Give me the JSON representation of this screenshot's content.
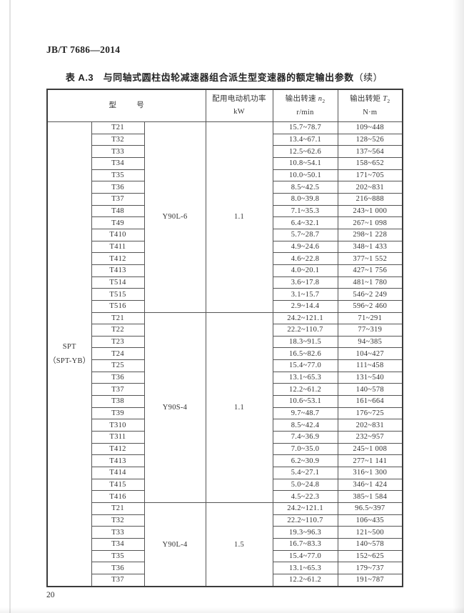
{
  "page": {
    "doc_number": "JB/T 7686—2014",
    "page_number": "20",
    "table_title": "表 A.3　与同轴式圆柱齿轮减速器组合派生型变速器的额定输出参数",
    "table_title_suffix": "（续）"
  },
  "table": {
    "header": {
      "model_left": "型",
      "model_right": "号",
      "power_line1": "配用电动机功率",
      "power_line2": "kW",
      "speed_prefix": "输出转速 ",
      "speed_var": "n",
      "speed_sub": "2",
      "speed_unit": "r/min",
      "torque_prefix": "输出转矩 ",
      "torque_var": "T",
      "torque_sub": "2",
      "torque_unit": "N·m"
    },
    "group": {
      "line1": "SPT",
      "line2": "（SPT-YB）"
    },
    "sections": [
      {
        "motor": "Y90L-6",
        "power": "1.1",
        "rows": [
          [
            "T21",
            "15.7~78.7",
            "109~448"
          ],
          [
            "T32",
            "13.4~67.1",
            "128~526"
          ],
          [
            "T33",
            "12.5~62.6",
            "137~564"
          ],
          [
            "T34",
            "10.8~54.1",
            "158~652"
          ],
          [
            "T35",
            "10.0~50.1",
            "171~705"
          ],
          [
            "T36",
            "8.5~42.5",
            "202~831"
          ],
          [
            "T37",
            "8.0~39.8",
            "216~888"
          ],
          [
            "T48",
            "7.1~35.3",
            "243~1 000"
          ],
          [
            "T49",
            "6.4~32.1",
            "267~1 098"
          ],
          [
            "T410",
            "5.7~28.7",
            "298~1 228"
          ],
          [
            "T411",
            "4.9~24.6",
            "348~1 433"
          ],
          [
            "T412",
            "4.6~22.8",
            "377~1 552"
          ],
          [
            "T413",
            "4.0~20.1",
            "427~1 756"
          ],
          [
            "T514",
            "3.6~17.8",
            "481~1 780"
          ],
          [
            "T515",
            "3.1~15.7",
            "546~2 249"
          ],
          [
            "T516",
            "2.9~14.4",
            "596~2 460"
          ]
        ]
      },
      {
        "motor": "Y90S-4",
        "power": "1.1",
        "rows": [
          [
            "T21",
            "24.2~121.1",
            "71~291"
          ],
          [
            "T22",
            "22.2~110.7",
            "77~319"
          ],
          [
            "T23",
            "18.3~91.5",
            "94~385"
          ],
          [
            "T24",
            "16.5~82.6",
            "104~427"
          ],
          [
            "T25",
            "15.4~77.0",
            "111~458"
          ],
          [
            "T36",
            "13.1~65.3",
            "131~540"
          ],
          [
            "T37",
            "12.2~61.2",
            "140~578"
          ],
          [
            "T38",
            "10.6~53.1",
            "161~664"
          ],
          [
            "T39",
            "9.7~48.7",
            "176~725"
          ],
          [
            "T310",
            "8.5~42.4",
            "202~831"
          ],
          [
            "T311",
            "7.4~36.9",
            "232~957"
          ],
          [
            "T412",
            "7.0~35.0",
            "245~1 008"
          ],
          [
            "T413",
            "6.2~30.9",
            "277~1 141"
          ],
          [
            "T414",
            "5.4~27.1",
            "316~1 300"
          ],
          [
            "T415",
            "5.0~24.8",
            "346~1 424"
          ],
          [
            "T416",
            "4.5~22.3",
            "385~1 584"
          ]
        ]
      },
      {
        "motor": "Y90L-4",
        "power": "1.5",
        "rows": [
          [
            "T21",
            "24.2~121.1",
            "96.5~397"
          ],
          [
            "T32",
            "22.2~110.7",
            "106~435"
          ],
          [
            "T33",
            "19.3~96.3",
            "121~500"
          ],
          [
            "T34",
            "16.7~83.3",
            "140~578"
          ],
          [
            "T35",
            "15.4~77.0",
            "152~625"
          ],
          [
            "T36",
            "13.1~65.3",
            "179~737"
          ],
          [
            "T37",
            "12.2~61.2",
            "191~787"
          ]
        ]
      }
    ]
  }
}
